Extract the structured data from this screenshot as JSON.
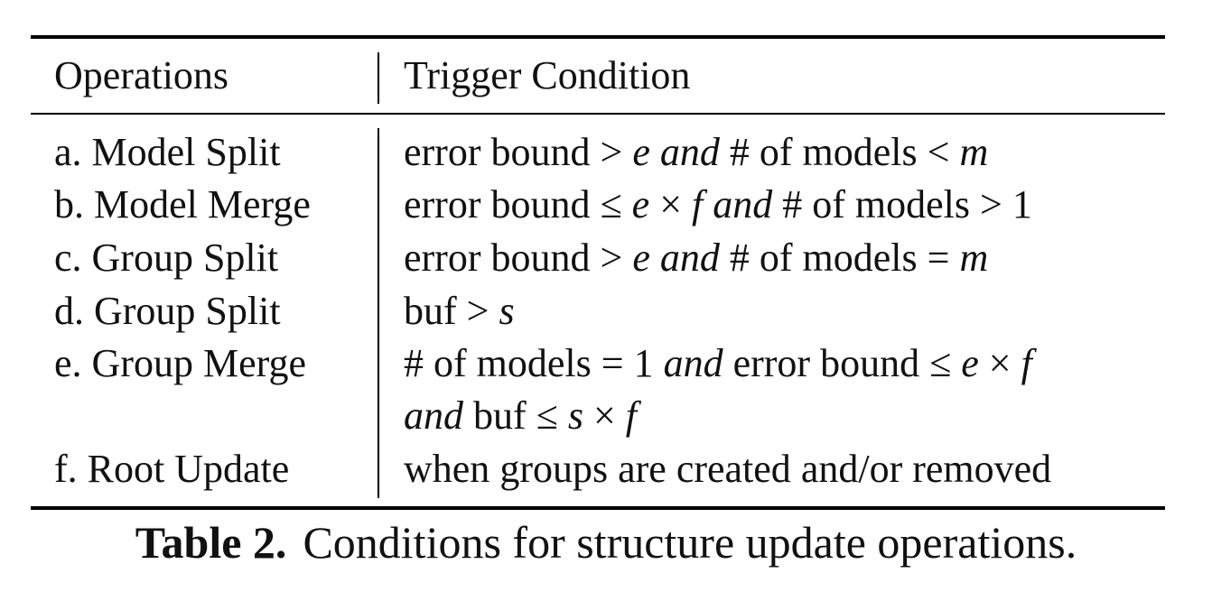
{
  "table": {
    "headers": {
      "operations": "Operations",
      "trigger_condition": "Trigger Condition"
    },
    "rows": [
      {
        "operation": "a. Model Split",
        "condition": "error bound > e and # of models < m"
      },
      {
        "operation": "b. Model Merge",
        "condition": "error bound ≤ e × f and # of models > 1"
      },
      {
        "operation": "c. Group Split",
        "condition": "error bound > e and # of models = m"
      },
      {
        "operation": "d. Group Split",
        "condition": "buf > s"
      },
      {
        "operation": "e. Group Merge",
        "condition": "# of models = 1 and error bound ≤ e × f",
        "condition_continued": "and buf ≤ s × f"
      },
      {
        "operation": "f. Root Update",
        "condition": "when groups are created and/or removed"
      }
    ]
  },
  "caption": {
    "label": "Table 2.",
    "text": "Conditions for structure update operations."
  }
}
